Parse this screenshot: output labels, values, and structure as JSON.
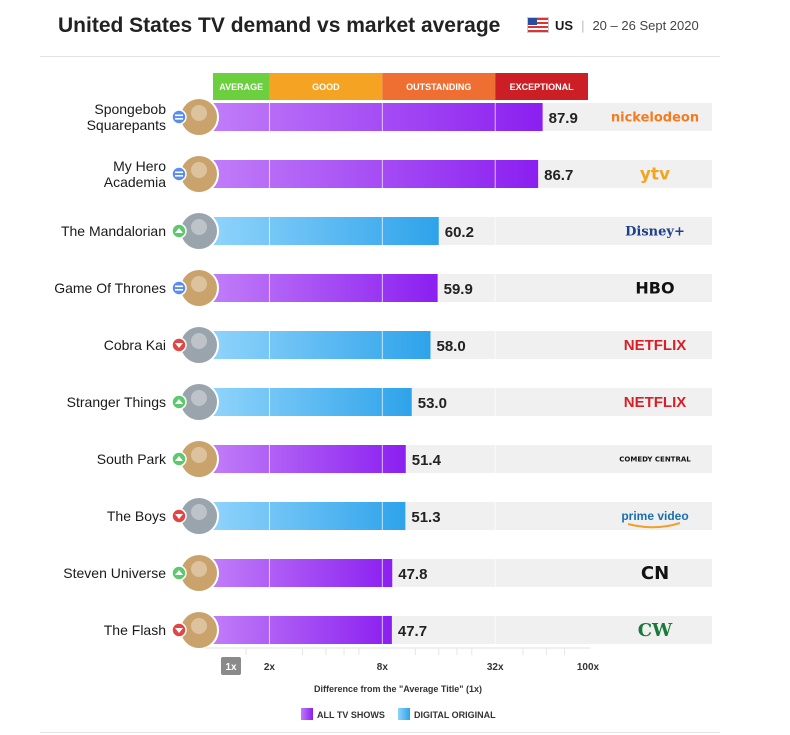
{
  "header": {
    "title": "United States TV demand vs market average",
    "country_code": "US",
    "separator": "|",
    "date_range": "20 – 26 Sept 2020"
  },
  "colors": {
    "all_tv_start": "#c07cf8",
    "all_tv_end": "#8b1ff0",
    "digital_start": "#8fd3fb",
    "digital_end": "#2ea3ea",
    "average": "#6ccf3e",
    "good": "#f4a322",
    "outstanding": "#ef6f33",
    "exceptional": "#cc1f25",
    "track": "#f0f0f0"
  },
  "chart_data": {
    "type": "bar",
    "orientation": "horizontal",
    "title": "United States TV demand vs market average",
    "xlabel": "Difference from the \"Average Title\" (1x)",
    "x_scale": "log",
    "xlim": [
      1,
      100
    ],
    "x_ticks": [
      "1x",
      "2x",
      "8x",
      "32x",
      "100x"
    ],
    "bands": [
      {
        "label": "AVERAGE",
        "from": 1,
        "to": 2
      },
      {
        "label": "GOOD",
        "from": 2,
        "to": 8
      },
      {
        "label": "OUTSTANDING",
        "from": 8,
        "to": 32
      },
      {
        "label": "EXCEPTIONAL",
        "from": 32,
        "to": 100
      }
    ],
    "legend": [
      {
        "label": "ALL TV SHOWS",
        "key": "all"
      },
      {
        "label": "DIGITAL ORIGINAL",
        "key": "digital"
      }
    ],
    "rows": [
      {
        "title": "Spongebob Squarepants",
        "lines": [
          "Spongebob",
          "Squarepants"
        ],
        "value": 87.9,
        "type": "all",
        "trend": "same",
        "network": "nickelodeon"
      },
      {
        "title": "My Hero Academia",
        "lines": [
          "My Hero",
          "Academia"
        ],
        "value": 86.7,
        "type": "all",
        "trend": "same",
        "network": "ytv"
      },
      {
        "title": "The Mandalorian",
        "lines": [
          "The Mandalorian"
        ],
        "value": 60.2,
        "type": "digital",
        "trend": "up",
        "network": "Disney+"
      },
      {
        "title": "Game Of Thrones",
        "lines": [
          "Game Of Thrones"
        ],
        "value": 59.9,
        "type": "all",
        "trend": "same",
        "network": "HBO"
      },
      {
        "title": "Cobra Kai",
        "lines": [
          "Cobra Kai"
        ],
        "value": 58.0,
        "type": "digital",
        "trend": "down",
        "network": "NETFLIX"
      },
      {
        "title": "Stranger Things",
        "lines": [
          "Stranger Things"
        ],
        "value": 53.0,
        "type": "digital",
        "trend": "up",
        "network": "NETFLIX"
      },
      {
        "title": "South Park",
        "lines": [
          "South Park"
        ],
        "value": 51.4,
        "type": "all",
        "trend": "up",
        "network": "COMEDY CENTRAL"
      },
      {
        "title": "The Boys",
        "lines": [
          "The Boys"
        ],
        "value": 51.3,
        "type": "digital",
        "trend": "down",
        "network": "prime video"
      },
      {
        "title": "Steven Universe",
        "lines": [
          "Steven Universe"
        ],
        "value": 47.8,
        "type": "all",
        "trend": "up",
        "network": "CN"
      },
      {
        "title": "The Flash",
        "lines": [
          "The Flash"
        ],
        "value": 47.7,
        "type": "all",
        "trend": "down",
        "network": "CW"
      }
    ]
  }
}
